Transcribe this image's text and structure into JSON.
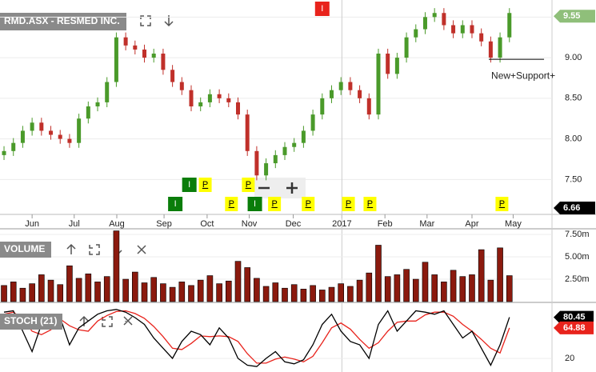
{
  "chart_data": [
    {
      "type": "candlestick",
      "title": "RMD.ASX - RESMED INC.",
      "open": [
        7.8,
        7.85,
        7.95,
        8.1,
        8.2,
        8.1,
        8.05,
        8.0,
        7.95,
        8.25,
        8.4,
        8.45,
        8.7,
        9.25,
        9.15,
        9.1,
        9.0,
        9.05,
        8.85,
        8.7,
        8.6,
        8.4,
        8.45,
        8.55,
        8.5,
        8.45,
        8.3,
        7.85,
        7.55,
        7.7,
        7.8,
        7.9,
        7.95,
        8.1,
        8.3,
        8.5,
        8.6,
        8.7,
        8.6,
        8.5,
        8.3,
        9.05,
        8.8,
        9.0,
        9.25,
        9.35,
        9.5,
        9.55,
        9.4,
        9.3,
        9.4,
        9.3,
        9.2,
        9.0,
        9.25
      ],
      "high": [
        7.91,
        8.01,
        8.16,
        8.26,
        8.26,
        8.16,
        8.11,
        8.06,
        8.31,
        8.46,
        8.51,
        8.76,
        9.31,
        9.31,
        9.21,
        9.16,
        9.11,
        9.11,
        8.91,
        8.76,
        8.66,
        8.51,
        8.61,
        8.61,
        8.56,
        8.51,
        8.36,
        7.91,
        7.76,
        7.86,
        7.96,
        8.01,
        8.16,
        8.36,
        8.56,
        8.66,
        8.76,
        8.76,
        8.66,
        8.56,
        9.11,
        9.11,
        9.06,
        9.31,
        9.41,
        9.56,
        9.61,
        9.61,
        9.46,
        9.46,
        9.46,
        9.36,
        9.26,
        9.31,
        9.61
      ],
      "low": [
        7.74,
        7.79,
        7.89,
        8.04,
        8.04,
        7.99,
        7.94,
        7.89,
        7.89,
        8.19,
        8.34,
        8.39,
        8.64,
        9.09,
        9.04,
        8.94,
        8.94,
        8.79,
        8.64,
        8.54,
        8.34,
        8.34,
        8.39,
        8.44,
        8.39,
        8.24,
        7.79,
        7.49,
        7.49,
        7.64,
        7.74,
        7.84,
        7.89,
        8.04,
        8.24,
        8.44,
        8.54,
        8.54,
        8.44,
        8.24,
        8.24,
        8.74,
        8.74,
        8.94,
        9.19,
        9.29,
        9.44,
        9.34,
        9.24,
        9.24,
        9.24,
        9.14,
        8.94,
        8.94,
        9.19
      ],
      "close": [
        7.85,
        7.95,
        8.1,
        8.2,
        8.1,
        8.05,
        8.0,
        7.95,
        8.25,
        8.4,
        8.45,
        8.7,
        9.25,
        9.15,
        9.1,
        9.0,
        9.05,
        8.85,
        8.7,
        8.6,
        8.4,
        8.45,
        8.55,
        8.5,
        8.45,
        8.3,
        7.85,
        7.55,
        7.7,
        7.8,
        7.9,
        7.95,
        8.1,
        8.3,
        8.5,
        8.6,
        8.7,
        8.6,
        8.5,
        8.3,
        9.05,
        8.8,
        9.0,
        9.25,
        9.35,
        9.5,
        9.55,
        9.4,
        9.3,
        9.4,
        9.3,
        9.2,
        9.0,
        9.25,
        9.55
      ],
      "up_color": "#4a9a2a",
      "down_color": "#c0302a",
      "xlim": [
        -0.43,
        58.55
      ],
      "xticks": [
        {
          "value": 3.0,
          "label": "Jun"
        },
        {
          "value": 7.5,
          "label": "Jul"
        },
        {
          "value": 12.05,
          "label": "Aug"
        },
        {
          "value": 17.1,
          "label": "Sep"
        },
        {
          "value": 21.7,
          "label": "Oct"
        },
        {
          "value": 26.2,
          "label": "Nov"
        },
        {
          "value": 30.9,
          "label": "Dec"
        },
        {
          "value": 36.1,
          "label": "2017"
        },
        {
          "value": 40.7,
          "label": "Feb"
        },
        {
          "value": 45.2,
          "label": "Mar"
        },
        {
          "value": 50.0,
          "label": "Apr"
        },
        {
          "value": 54.4,
          "label": "May"
        }
      ],
      "ylim": [
        7.07,
        9.71
      ],
      "yticks": [
        {
          "value": 7.5,
          "label": "7.50"
        },
        {
          "value": 8.0,
          "label": "8.00"
        },
        {
          "value": 8.5,
          "label": "8.50"
        },
        {
          "value": 9.0,
          "label": "9.00"
        },
        {
          "value": 9.5,
          "label": "9.50"
        }
      ],
      "grid": true,
      "events": [
        {
          "label": "I",
          "x": 34.0,
          "color": "#e8231c"
        },
        {
          "label": "I",
          "x": 18.3,
          "color": "#0a7d0a"
        },
        {
          "label": "I",
          "x": 19.8,
          "color": "#0a7d0a"
        },
        {
          "label": "P",
          "x": 21.5,
          "color": "#ffff00"
        },
        {
          "label": "P",
          "x": 24.3,
          "color": "#ffff00"
        },
        {
          "label": "I",
          "x": 26.8,
          "color": "#0a7d0a"
        },
        {
          "label": "P",
          "x": 26.1,
          "color": "#ffff00"
        },
        {
          "label": "P",
          "x": 28.9,
          "color": "#ffff00"
        },
        {
          "label": "P",
          "x": 32.5,
          "color": "#ffff00"
        },
        {
          "label": "P",
          "x": 36.8,
          "color": "#ffff00"
        },
        {
          "label": "P",
          "x": 39.1,
          "color": "#ffff00"
        },
        {
          "label": "P",
          "x": 53.2,
          "color": "#ffff00"
        }
      ],
      "support": {
        "value": 8.98,
        "x": [
          51.8,
          57.7
        ],
        "label": "New+Support+"
      },
      "price_tags": [
        9.55,
        6.66
      ]
    },
    {
      "type": "bar",
      "title": "VOLUME",
      "values": [
        1.8,
        2.2,
        1.5,
        2.0,
        3.0,
        2.4,
        1.9,
        4.0,
        2.6,
        3.1,
        2.2,
        2.8,
        7.9,
        2.5,
        3.3,
        2.1,
        2.7,
        2.0,
        1.6,
        2.2,
        1.8,
        2.4,
        2.9,
        2.0,
        2.3,
        4.5,
        3.8,
        2.6,
        1.7,
        2.1,
        1.5,
        1.9,
        1.4,
        1.8,
        1.3,
        1.6,
        2.0,
        1.7,
        2.4,
        3.2,
        6.3,
        2.8,
        3.0,
        3.6,
        2.5,
        4.4,
        3.0,
        2.2,
        3.5,
        2.8,
        3.0,
        5.8,
        2.4,
        6.0,
        2.9
      ],
      "color": "#8b1a0e",
      "ylim": [
        0,
        8.04
      ],
      "yticks": [
        {
          "value": 2.5,
          "label": "2.50m"
        },
        {
          "value": 5.0,
          "label": "5.00m"
        },
        {
          "value": 7.5,
          "label": "7.50m"
        }
      ]
    },
    {
      "type": "line",
      "title": "STOCH (21)",
      "series": [
        {
          "name": "%K",
          "color": "#000000",
          "values": [
            88,
            90,
            60,
            30,
            70,
            85,
            80,
            40,
            65,
            75,
            85,
            90,
            92,
            88,
            80,
            70,
            50,
            35,
            20,
            45,
            60,
            55,
            40,
            65,
            50,
            20,
            10,
            8,
            20,
            30,
            15,
            12,
            18,
            40,
            70,
            85,
            60,
            45,
            40,
            20,
            70,
            90,
            60,
            75,
            90,
            88,
            85,
            90,
            70,
            50,
            60,
            35,
            10,
            40,
            80.45
          ]
        },
        {
          "name": "%D",
          "color": "#e8231c",
          "values": [
            85,
            88,
            78,
            60,
            55,
            62,
            78,
            68,
            62,
            60,
            75,
            83,
            89,
            90,
            86,
            79,
            67,
            52,
            35,
            33,
            42,
            53,
            52,
            53,
            52,
            45,
            27,
            13,
            13,
            19,
            22,
            19,
            15,
            23,
            43,
            65,
            72,
            63,
            48,
            35,
            43,
            60,
            73,
            75,
            75,
            84,
            88,
            88,
            82,
            70,
            60,
            48,
            35,
            28,
            64.88
          ]
        }
      ],
      "ylim": [
        0,
        100
      ],
      "yticks": [
        20
      ],
      "value_tags": [
        80.45,
        64.88
      ]
    }
  ]
}
